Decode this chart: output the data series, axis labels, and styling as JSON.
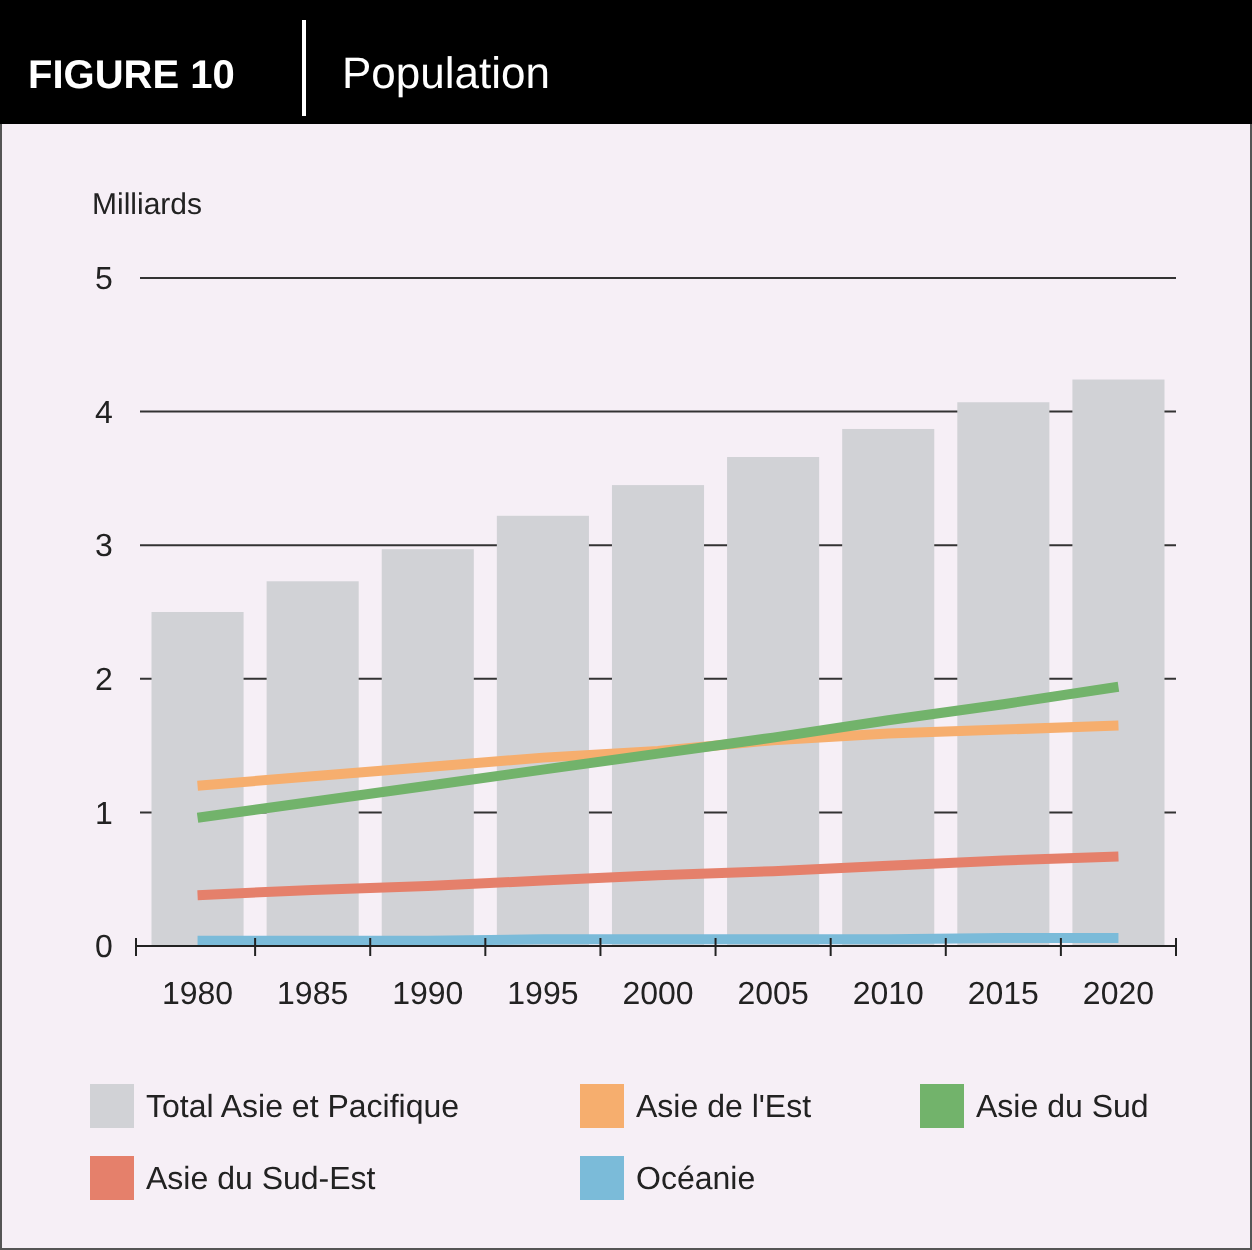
{
  "chart_data": {
    "type": "bar",
    "title": "Population",
    "subtitle": "FIGURE 10",
    "ylabel": "Milliards",
    "categories": [
      "1980",
      "1985",
      "1990",
      "1995",
      "2000",
      "2005",
      "2010",
      "2015",
      "2020"
    ],
    "series": [
      {
        "name": "Total Asie et Pacifique",
        "color": "#d1d2d6",
        "values": [
          2.5,
          2.73,
          2.97,
          3.22,
          3.45,
          3.66,
          3.87,
          4.07,
          4.24
        ]
      },
      {
        "name": "Asie de l'Est",
        "type": "line",
        "color": "#f6ae6e",
        "values": [
          1.2,
          1.27,
          1.34,
          1.41,
          1.46,
          1.54,
          1.59,
          1.62,
          1.65
        ]
      },
      {
        "name": "Asie du Sud",
        "type": "line",
        "color": "#72b36b",
        "values": [
          0.96,
          1.08,
          1.2,
          1.32,
          1.44,
          1.56,
          1.69,
          1.81,
          1.94
        ]
      },
      {
        "name": "Asie du Sud-Est",
        "type": "line",
        "color": "#e5806b",
        "values": [
          0.38,
          0.42,
          0.45,
          0.49,
          0.53,
          0.56,
          0.6,
          0.64,
          0.67
        ]
      },
      {
        "name": "Océanie",
        "type": "line",
        "color": "#7bbbd9",
        "values": [
          0.04,
          0.04,
          0.04,
          0.05,
          0.05,
          0.05,
          0.05,
          0.06,
          0.06
        ]
      }
    ],
    "ylim": [
      0,
      5
    ],
    "yticks": [
      0,
      1,
      2,
      3,
      4,
      5
    ],
    "grid": "y",
    "legend": "bottom",
    "line_style": "solid",
    "marker": "none"
  }
}
